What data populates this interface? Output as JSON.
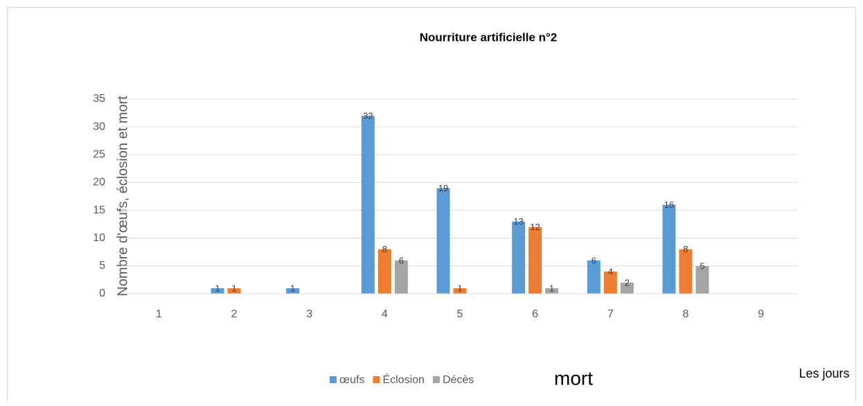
{
  "chart_data": {
    "type": "bar",
    "title": "Nourriture artificielle n°2",
    "y_label": "Nombre d'œufs, éclosion et mort",
    "x_label": "Les jours",
    "annotation": "mort",
    "categories": [
      "1",
      "2",
      "3",
      "4",
      "5",
      "6",
      "7",
      "8",
      "9"
    ],
    "series": [
      {
        "name": "œufs",
        "color": "#5b9bd5",
        "values": [
          0,
          1,
          1,
          32,
          19,
          13,
          6,
          16,
          0
        ]
      },
      {
        "name": "Éclosion",
        "color": "#ed7d31",
        "values": [
          0,
          1,
          0,
          8,
          1,
          12,
          4,
          8,
          0
        ]
      },
      {
        "name": "Décès",
        "color": "#a5a5a5",
        "values": [
          0,
          0,
          0,
          6,
          0,
          1,
          2,
          5,
          0
        ]
      }
    ],
    "ylim": [
      0,
      35
    ],
    "yticks": [
      0,
      5,
      10,
      15,
      20,
      25,
      30,
      35
    ],
    "grid": true,
    "legend": "bottom"
  }
}
